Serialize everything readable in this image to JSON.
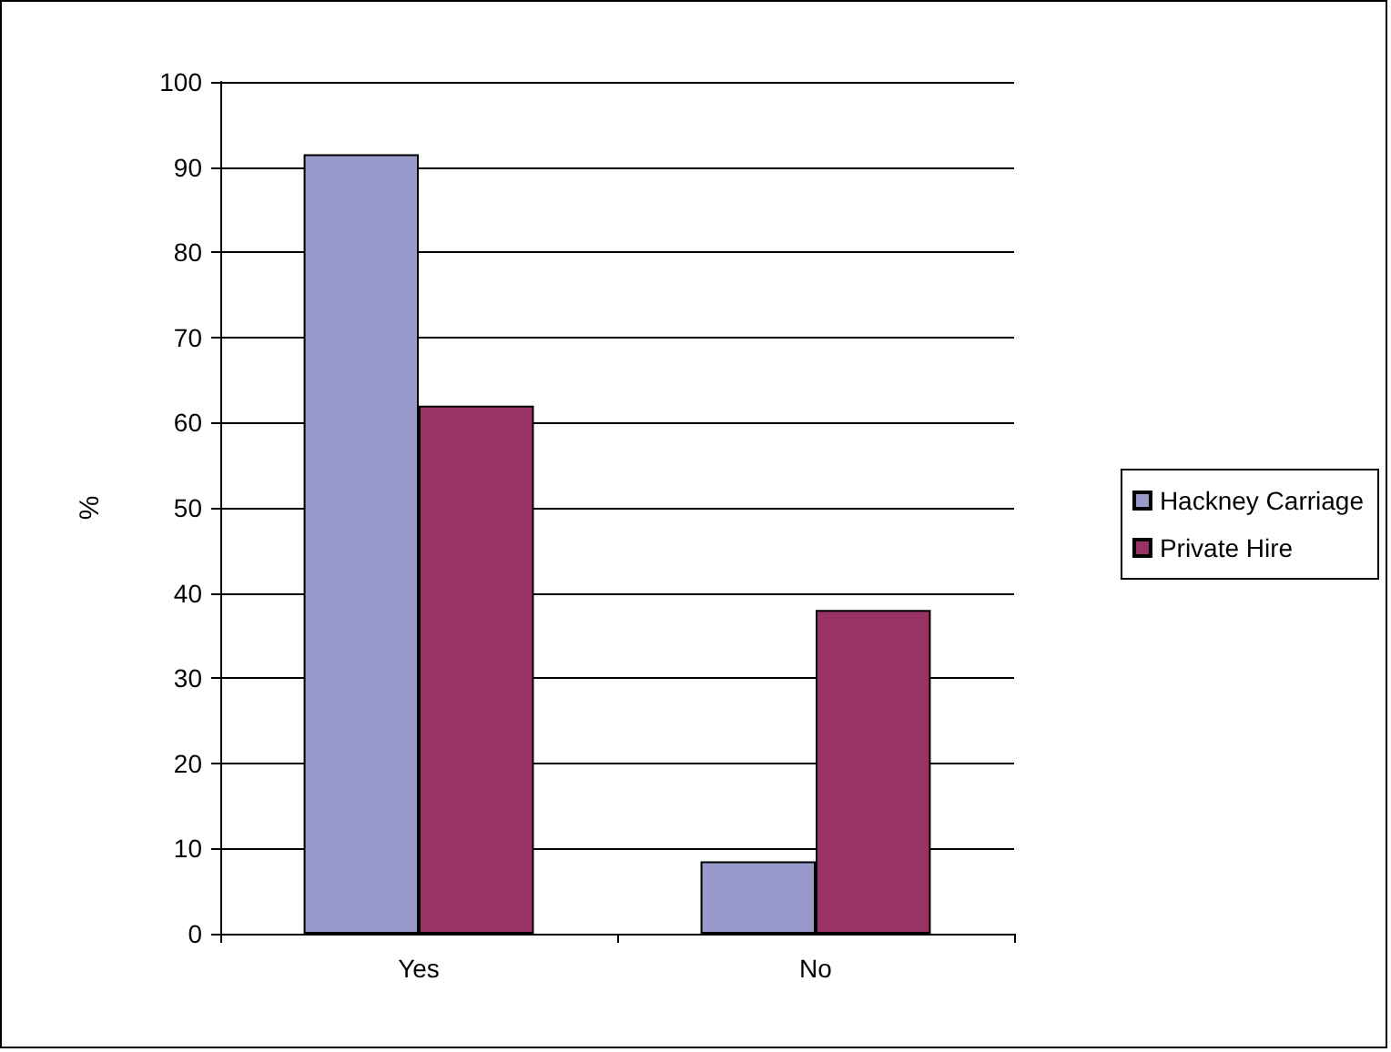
{
  "chart_data": {
    "type": "bar",
    "ylabel": "%",
    "categories": [
      "Yes",
      "No"
    ],
    "series": [
      {
        "name": "Hackney Carriage",
        "color": "#9999cc",
        "values": [
          91.5,
          8.5
        ]
      },
      {
        "name": "Private Hire",
        "color": "#993366",
        "values": [
          62,
          38
        ]
      }
    ],
    "ylim": [
      0,
      100
    ],
    "yticks": [
      0,
      10,
      20,
      30,
      40,
      50,
      60,
      70,
      80,
      90,
      100
    ],
    "grid": "y",
    "legend": "right"
  }
}
